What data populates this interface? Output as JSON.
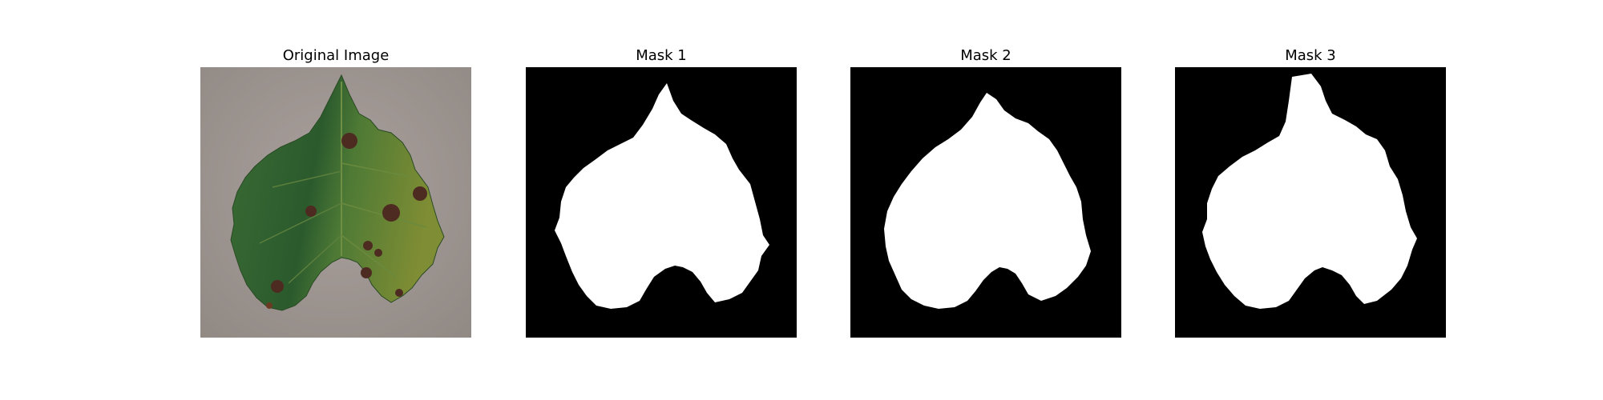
{
  "figure": {
    "panels": [
      {
        "title": "Original Image"
      },
      {
        "title": "Mask 1"
      },
      {
        "title": "Mask 2"
      },
      {
        "title": "Mask 3"
      }
    ]
  },
  "colors": {
    "background_concrete": "#9d9490",
    "leaf_dark": "#2d5a2c",
    "leaf_mid": "#3f6f34",
    "leaf_yellow": "#7d8b33",
    "lesion_brown": "#4e2b21",
    "mask_bg": "#000000",
    "mask_fg": "#ffffff"
  }
}
